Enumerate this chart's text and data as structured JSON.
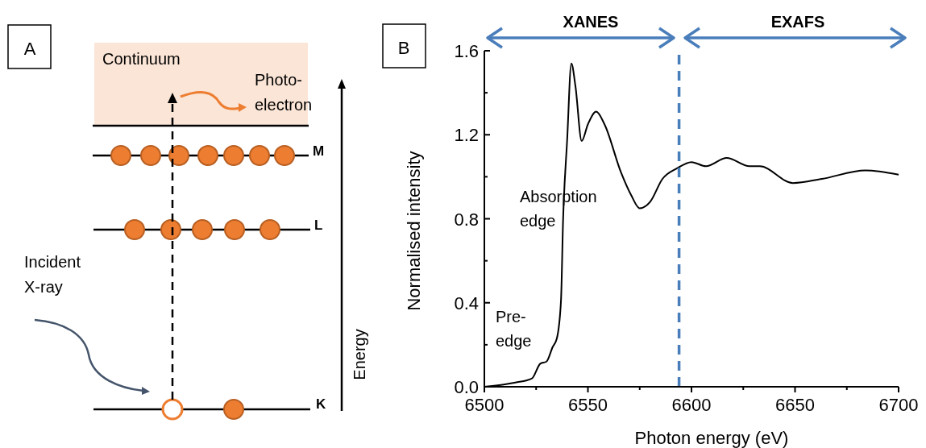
{
  "chart_data": [
    {
      "type": "other",
      "title": "A",
      "annotations": [
        "Continuum",
        "Photo-\nelectron",
        "M",
        "L",
        "K",
        "Incident\nX-ray",
        "Energy"
      ]
    },
    {
      "type": "line",
      "title": "B",
      "xlabel": "Photon energy (eV)",
      "ylabel": "Normalised intensity",
      "xlim": [
        6500,
        6700
      ],
      "xticks": [
        6500,
        {
          "value": 6525,
          "label": null
        },
        6550,
        {
          "value": 6575,
          "label": null
        },
        6600,
        {
          "value": 6625,
          "label": null
        },
        6650,
        {
          "value": 6675,
          "label": null
        },
        6700
      ],
      "ylim": [
        0,
        1.6
      ],
      "yticks": [
        {
          "value": 0,
          "label": "0.0"
        },
        {
          "value": 0.2,
          "label": null
        },
        0.4,
        {
          "value": 0.6,
          "label": null
        },
        0.8,
        {
          "value": 1.0,
          "label": null
        },
        1.2,
        {
          "value": 1.4,
          "label": null
        },
        1.6
      ],
      "grid": false,
      "marker": "none",
      "line_style": "solid",
      "series": [
        {
          "color": "#000000",
          "x": [
            6500,
            6515,
            6523,
            6527,
            6530,
            6533,
            6535,
            6537,
            6538,
            6540,
            6542,
            6544,
            6547,
            6550,
            6554,
            6558,
            6566,
            6571,
            6575,
            6580,
            6586,
            6593,
            6600,
            6607,
            6617,
            6628,
            6633,
            6649,
            6663,
            6684,
            6700
          ],
          "values": [
            0,
            0.02,
            0.04,
            0.11,
            0.12,
            0.19,
            0.23,
            0.41,
            0.79,
            1.18,
            1.54,
            1.43,
            1.17,
            1.25,
            1.31,
            1.25,
            1.02,
            0.91,
            0.85,
            0.88,
            0.99,
            1.04,
            1.07,
            1.05,
            1.09,
            1.05,
            1.05,
            0.97,
            0.99,
            1.03,
            1.01
          ]
        }
      ],
      "ref_lines": [
        {
          "axis": "x",
          "value": 6594,
          "color": "#4a7ebb",
          "line_style": "dashed"
        }
      ],
      "annotations": [
        "XANES",
        "EXAFS",
        "Pre-\nedge",
        "Absorption\nedge"
      ]
    }
  ]
}
